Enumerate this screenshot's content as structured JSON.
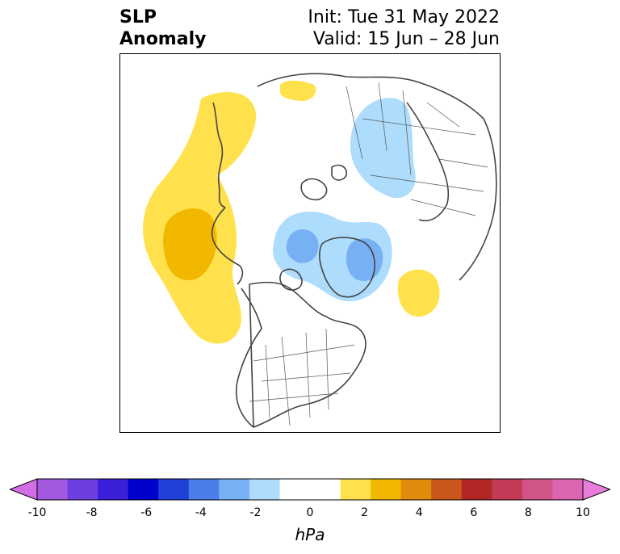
{
  "title": {
    "left_line1": "SLP",
    "left_line2": "Anomaly",
    "right_line1": "Init: Tue 31 May 2022",
    "right_line2": "Valid: 15 Jun – 28 Jun"
  },
  "map": {
    "projection": "north-polar stereographic",
    "anomaly_regions": [
      {
        "region": "North Pacific / Bering",
        "sign": "positive",
        "level": 2
      },
      {
        "region": "North Pacific core",
        "sign": "positive",
        "level": 3
      },
      {
        "region": "Scandinavia / Western Russia",
        "sign": "positive",
        "level": 1
      },
      {
        "region": "East Siberia",
        "sign": "negative",
        "level": -1
      },
      {
        "region": "Greenland / Canadian Arctic",
        "sign": "negative",
        "level": -1
      },
      {
        "region": "Greenland core",
        "sign": "negative",
        "level": -2
      },
      {
        "region": "North Atlantic",
        "sign": "positive",
        "level": 1
      }
    ]
  },
  "colorbar": {
    "unit_label": "hPa",
    "tick_labels": [
      "-10",
      "-8",
      "-6",
      "-4",
      "-2",
      "0",
      "2",
      "4",
      "6",
      "8",
      "10"
    ],
    "colors": [
      "#d46ee6",
      "#a259e0",
      "#6d3fe0",
      "#3a20d8",
      "#0000cc",
      "#2140d8",
      "#4d7de8",
      "#78b0f4",
      "#addcfc",
      "#ffffff",
      "#ffffff",
      "#ffe14d",
      "#f2b800",
      "#e08a0e",
      "#c9561a",
      "#b32626",
      "#c23a55",
      "#d15588",
      "#dc64b0",
      "#e97ddc"
    ]
  }
}
